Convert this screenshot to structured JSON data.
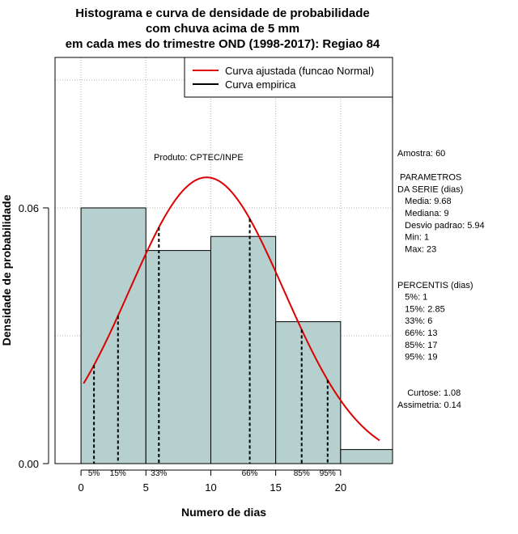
{
  "chart_data": {
    "type": "bar",
    "title_lines": [
      "Histograma e curva de densidade de probabilidade",
      "com chuva acima de 5 mm",
      "em cada mes do trimestre OND (1998-2017): Regiao 84"
    ],
    "xlabel": "Numero de dias",
    "ylabel": "Densidade de probabilidade",
    "xlim": [
      -2,
      24
    ],
    "ylim": [
      0,
      0.0953
    ],
    "x_ticks": [
      0,
      5,
      10,
      15,
      20
    ],
    "y_ticks": [
      0.0,
      0.06
    ],
    "y_tick_labels": [
      "0.00",
      "0.06"
    ],
    "grid": true,
    "bins": [
      {
        "from": 0,
        "to": 5,
        "density": 0.06
      },
      {
        "from": 5,
        "to": 10,
        "density": 0.05
      },
      {
        "from": 10,
        "to": 15,
        "density": 0.0533
      },
      {
        "from": 15,
        "to": 20,
        "density": 0.0333
      },
      {
        "from": 20,
        "to": 25,
        "density": 0.0033
      }
    ],
    "bar_color": "#b6cfcf",
    "normal_curve": {
      "mean": 9.68,
      "sd": 5.94,
      "x_from": 0.2,
      "x_to": 23,
      "color": "#dd0000"
    },
    "percentile_lines": [
      {
        "label": "5%",
        "x": 1
      },
      {
        "label": "15%",
        "x": 2.85
      },
      {
        "label": "33%",
        "x": 6
      },
      {
        "label": "66%",
        "x": 13
      },
      {
        "label": "85%",
        "x": 17
      },
      {
        "label": "95%",
        "x": 19
      }
    ],
    "legend": {
      "placement": "top-right",
      "entries": [
        {
          "label": "Curva ajustada (funcao Normal)",
          "color": "#dd0000"
        },
        {
          "label": "Curva empirica",
          "color": "#000000"
        }
      ]
    },
    "annotation": "Produto: CPTEC/INPE",
    "stats_panel": [
      "Amostra: 60",
      "",
      " PARAMETROS",
      "DA SERIE (dias)",
      "   Media: 9.68",
      "   Mediana: 9",
      "   Desvio padrao: 5.94",
      "   Min: 1",
      "   Max: 23",
      "",
      "",
      "PERCENTIS (dias)",
      "   5%: 1",
      "   15%: 2.85",
      "   33%: 6",
      "   66%: 13",
      "   85%: 17",
      "   95%: 19",
      "",
      "",
      "    Curtose: 1.08",
      "Assimetria: 0.14"
    ]
  }
}
